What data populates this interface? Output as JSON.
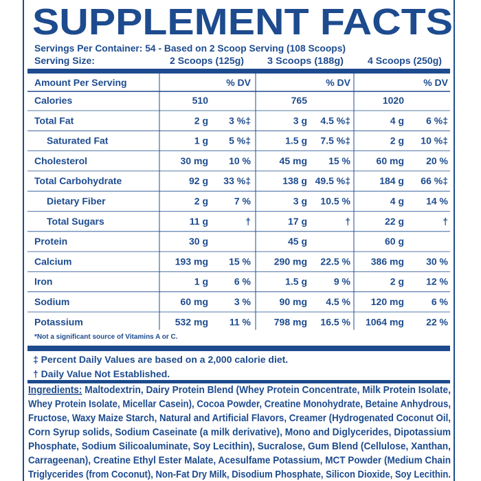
{
  "title": "SUPPLEMENT FACTS",
  "servings": "Servings Per Container: 54 - Based on 2 Scoop Serving (108 Scoops)",
  "serving_size": {
    "label": "Serving Size:",
    "columns": [
      "2 Scoops (125g)",
      "3 Scoops (188g)",
      "4 Scoops (250g)"
    ]
  },
  "table": {
    "header": [
      "Amount Per Serving",
      "% DV",
      "% DV",
      "% DV"
    ],
    "rows": [
      {
        "name": "Calories",
        "indented": false,
        "cells": [
          [
            "510"
          ],
          [
            "765"
          ],
          [
            "1020"
          ]
        ]
      },
      {
        "name": "Total Fat",
        "indented": false,
        "cells": [
          [
            "2 g",
            "3 %‡"
          ],
          [
            "3 g",
            "4.5 %‡"
          ],
          [
            "4 g",
            "6 %‡"
          ]
        ]
      },
      {
        "name": "Saturated Fat",
        "indented": true,
        "cells": [
          [
            "1 g",
            "5 %‡"
          ],
          [
            "1.5 g",
            "7.5 %‡"
          ],
          [
            "2 g",
            "10 %‡"
          ]
        ]
      },
      {
        "name": "Cholesterol",
        "indented": false,
        "cells": [
          [
            "30 mg",
            "10 %"
          ],
          [
            "45 mg",
            "15 %"
          ],
          [
            "60 mg",
            "20 %"
          ]
        ]
      },
      {
        "name": "Total Carbohydrate",
        "indented": false,
        "cells": [
          [
            "92 g",
            "33 %‡"
          ],
          [
            "138 g",
            "49.5 %‡"
          ],
          [
            "184 g",
            "66 %‡"
          ]
        ]
      },
      {
        "name": "Dietary Fiber",
        "indented": true,
        "cells": [
          [
            "2 g",
            "7 %"
          ],
          [
            "3 g",
            "10.5 %"
          ],
          [
            "4 g",
            "14 %"
          ]
        ]
      },
      {
        "name": "Total Sugars",
        "indented": true,
        "cells": [
          [
            "11 g",
            "†"
          ],
          [
            "17 g",
            "†"
          ],
          [
            "22 g",
            "†"
          ]
        ]
      },
      {
        "name": "Protein",
        "indented": false,
        "cells": [
          [
            "30 g"
          ],
          [
            "45 g"
          ],
          [
            "60 g"
          ]
        ]
      },
      {
        "name": "Calcium",
        "indented": false,
        "cells": [
          [
            "193 mg",
            "15 %"
          ],
          [
            "290 mg",
            "22.5 %"
          ],
          [
            "386 mg",
            "30 %"
          ]
        ]
      },
      {
        "name": "Iron",
        "indented": false,
        "cells": [
          [
            "1 g",
            "6 %"
          ],
          [
            "1.5 g",
            "9 %"
          ],
          [
            "2 g",
            "12 %"
          ]
        ]
      },
      {
        "name": "Sodium",
        "indented": false,
        "cells": [
          [
            "60 mg",
            "3 %"
          ],
          [
            "90 mg",
            "4.5 %"
          ],
          [
            "120 mg",
            "6 %"
          ]
        ]
      },
      {
        "name": "Potassium",
        "indented": false,
        "cells": [
          [
            "532 mg",
            "11 %"
          ],
          [
            "798 mg",
            "16.5 %"
          ],
          [
            "1064 mg",
            "22 %"
          ]
        ]
      }
    ],
    "footnote": "*Not a significant source of Vitamins A or C."
  },
  "notes": [
    "‡ Percent Daily Values are based on a 2,000 calorie diet.",
    "† Daily Value Not Established."
  ],
  "ingredients": {
    "label": "Ingredients:",
    "lines": [
      " Maltodextrin, Dairy Protein Blend (Whey Protein Concentrate, Milk Protein Isolate,",
      "Whey Protein Isolate, Micellar Casein), Cocoa Powder, Creatine  Monohydrate, Betaine Anhydrous,",
      "Fructose, Waxy Maize Starch, Natural and Artificial Flavors, Creamer (Hydrogenated Coconut Oil,",
      "Corn Syrup solids, Sodium Caseinate (a milk derivative), Mono and Diglycerides, Dipotassium",
      "Phosphate, Sodium Silicoaluminate, Soy Lecithin), Sucralose, Gum Blend (Cellulose, Xanthan,",
      "Carrageenan), Creatine Ethyl Ester Malate, Acesulfame Potassium, MCT Powder (Medium Chain",
      "Triglycerides (from Coconut), Non-Fat Dry Milk, Disodium Phosphate, Silicon Dioxide, Soy Lecithin."
    ]
  }
}
